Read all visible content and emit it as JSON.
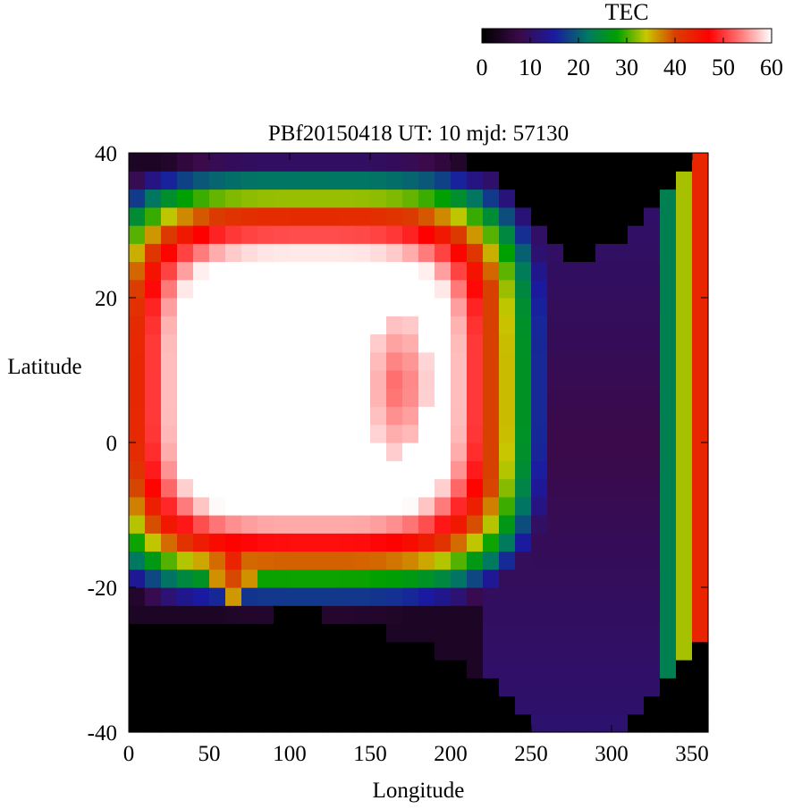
{
  "chart_data": {
    "type": "heatmap",
    "title": "PBf20150418  UT: 10  mjd: 57130",
    "xlabel": "Longitude",
    "ylabel": "Latitude",
    "xlim": [
      0,
      360
    ],
    "ylim": [
      -40,
      40
    ],
    "x_ticks": [
      "0",
      "50",
      "100",
      "150",
      "200",
      "250",
      "300",
      "350"
    ],
    "y_ticks": [
      "40",
      "20",
      "0",
      "-20",
      "-40"
    ],
    "grid": false,
    "colorbar": {
      "label": "TEC",
      "range": [
        0,
        60
      ],
      "ticks": [
        "0",
        "10",
        "20",
        "30",
        "40",
        "50",
        "60"
      ],
      "stops": [
        {
          "v": 0,
          "color": "#000000"
        },
        {
          "v": 8,
          "color": "#3a0a4a"
        },
        {
          "v": 15,
          "color": "#1a1aa0"
        },
        {
          "v": 22,
          "color": "#007a60"
        },
        {
          "v": 28,
          "color": "#00a000"
        },
        {
          "v": 34,
          "color": "#c8c800"
        },
        {
          "v": 40,
          "color": "#d84000"
        },
        {
          "v": 47,
          "color": "#ff0000"
        },
        {
          "v": 54,
          "color": "#ff8080"
        },
        {
          "v": 60,
          "color": "#ffffff"
        }
      ]
    },
    "grid_resolution": {
      "dlon": 10,
      "dlat": 2.5
    },
    "features": {
      "peak_region": {
        "lon": [
          30,
          200
        ],
        "lat": [
          -8,
          26
        ],
        "tec": 60
      },
      "secondary_peak": {
        "lon": 168,
        "lat": 8,
        "tec": 52
      },
      "trough": {
        "lon": [
          230,
          320
        ],
        "tec": 8
      },
      "dawn_band": {
        "lon": 350,
        "lat": 15,
        "tec": 38
      },
      "no_data_value": 0
    }
  }
}
